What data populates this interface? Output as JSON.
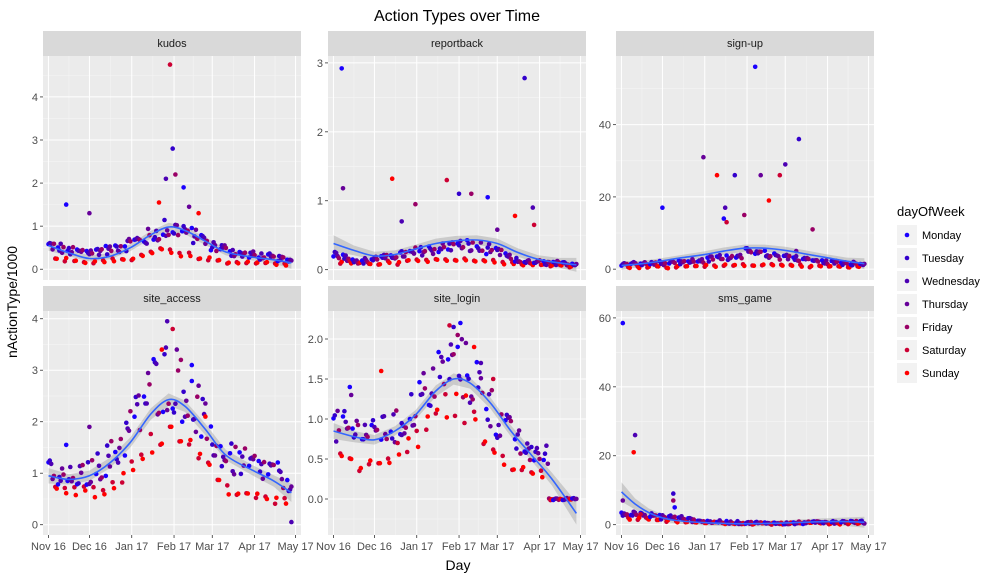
{
  "chart_data": {
    "type": "scatter",
    "title": "Action Types over Time",
    "xlabel": "Day",
    "ylabel": "nActionType/1000",
    "x_ticks": [
      "Nov 16",
      "Dec 16",
      "Jan 17",
      "Feb 17",
      "Mar 17",
      "Apr 17",
      "May 17"
    ],
    "x_tick_days": [
      0,
      30,
      61,
      92,
      120,
      151,
      181
    ],
    "xlim": [
      -4,
      185
    ],
    "legend": {
      "title": "dayOfWeek",
      "position": "right",
      "entries": [
        "Monday",
        "Tuesday",
        "Wednesday",
        "Thursday",
        "Friday",
        "Saturday",
        "Sunday"
      ],
      "colors": [
        "#1a00ff",
        "#3300cc",
        "#4c00b3",
        "#660099",
        "#990066",
        "#cc0033",
        "#ff0000"
      ]
    },
    "smooth_color": "#3366ff",
    "ribbon_color": "#999999",
    "grid": true,
    "panels": [
      {
        "name": "kudos",
        "ylim": [
          -0.25,
          4.95
        ],
        "y_ticks": [
          0,
          1,
          2,
          3,
          4
        ],
        "weekday_base": [
          [
            0,
            0.55
          ],
          [
            20,
            0.4
          ],
          [
            45,
            0.45
          ],
          [
            70,
            0.7
          ],
          [
            85,
            0.95
          ],
          [
            100,
            0.9
          ],
          [
            120,
            0.55
          ],
          [
            140,
            0.35
          ],
          [
            160,
            0.3
          ],
          [
            178,
            0.2
          ]
        ],
        "weekend_base": [
          [
            0,
            0.25
          ],
          [
            30,
            0.15
          ],
          [
            60,
            0.25
          ],
          [
            85,
            0.45
          ],
          [
            110,
            0.25
          ],
          [
            140,
            0.15
          ],
          [
            178,
            0.1
          ]
        ],
        "outliers": [
          [
            13,
            1.5
          ],
          [
            30,
            1.3
          ],
          [
            81,
            1.55
          ],
          [
            86,
            2.1
          ],
          [
            89,
            4.75
          ],
          [
            91,
            2.8
          ],
          [
            93,
            2.2
          ],
          [
            99,
            1.9
          ],
          [
            103,
            1.45
          ],
          [
            110,
            1.3
          ]
        ],
        "smooth": [
          [
            0,
            0.55
          ],
          [
            15,
            0.38
          ],
          [
            30,
            0.25
          ],
          [
            45,
            0.3
          ],
          [
            60,
            0.5
          ],
          [
            75,
            0.8
          ],
          [
            88,
            0.98
          ],
          [
            100,
            0.9
          ],
          [
            115,
            0.65
          ],
          [
            130,
            0.4
          ],
          [
            150,
            0.28
          ],
          [
            165,
            0.22
          ],
          [
            178,
            0.15
          ]
        ],
        "se": [
          0.12,
          0.08,
          0.07,
          0.07,
          0.08,
          0.09,
          0.1,
          0.09,
          0.09,
          0.08,
          0.08,
          0.09,
          0.14
        ]
      },
      {
        "name": "reportback",
        "ylim": [
          -0.15,
          3.1
        ],
        "y_ticks": [
          0,
          1,
          2,
          3
        ],
        "weekday_base": [
          [
            0,
            0.25
          ],
          [
            20,
            0.12
          ],
          [
            45,
            0.2
          ],
          [
            70,
            0.3
          ],
          [
            95,
            0.35
          ],
          [
            115,
            0.3
          ],
          [
            135,
            0.12
          ],
          [
            160,
            0.1
          ],
          [
            178,
            0.08
          ]
        ],
        "weekend_base": [
          [
            0,
            0.12
          ],
          [
            30,
            0.08
          ],
          [
            60,
            0.12
          ],
          [
            90,
            0.15
          ],
          [
            120,
            0.1
          ],
          [
            150,
            0.06
          ],
          [
            178,
            0.04
          ]
        ],
        "outliers": [
          [
            6,
            2.92
          ],
          [
            7,
            1.18
          ],
          [
            43,
            1.32
          ],
          [
            50,
            0.7
          ],
          [
            83,
            1.3
          ],
          [
            92,
            1.1
          ],
          [
            101,
            1.1
          ],
          [
            113,
            1.05
          ],
          [
            120,
            0.58
          ],
          [
            133,
            0.78
          ],
          [
            146,
            0.9
          ],
          [
            147,
            0.65
          ],
          [
            140,
            2.78
          ],
          [
            60,
            0.95
          ]
        ],
        "smooth": [
          [
            0,
            0.38
          ],
          [
            15,
            0.28
          ],
          [
            30,
            0.2
          ],
          [
            45,
            0.22
          ],
          [
            60,
            0.3
          ],
          [
            75,
            0.38
          ],
          [
            90,
            0.42
          ],
          [
            105,
            0.43
          ],
          [
            120,
            0.38
          ],
          [
            135,
            0.25
          ],
          [
            150,
            0.15
          ],
          [
            165,
            0.1
          ],
          [
            178,
            0.07
          ]
        ],
        "se": [
          0.12,
          0.07,
          0.06,
          0.06,
          0.06,
          0.07,
          0.07,
          0.07,
          0.07,
          0.06,
          0.06,
          0.07,
          0.1
        ]
      },
      {
        "name": "sign-up",
        "ylim": [
          -3,
          59
        ],
        "y_ticks": [
          0,
          20,
          40
        ],
        "weekday_base": [
          [
            0,
            1.5
          ],
          [
            30,
            1.8
          ],
          [
            60,
            2.5
          ],
          [
            90,
            4.5
          ],
          [
            120,
            3.5
          ],
          [
            150,
            2
          ],
          [
            178,
            1.5
          ]
        ],
        "weekend_base": [
          [
            0,
            0.5
          ],
          [
            60,
            0.8
          ],
          [
            100,
            1.2
          ],
          [
            140,
            0.8
          ],
          [
            178,
            0.5
          ]
        ],
        "outliers": [
          [
            30,
            17
          ],
          [
            60,
            31
          ],
          [
            70,
            26
          ],
          [
            76,
            17
          ],
          [
            77,
            13
          ],
          [
            83,
            26
          ],
          [
            90,
            15
          ],
          [
            98,
            56
          ],
          [
            102,
            26
          ],
          [
            108,
            19
          ],
          [
            120,
            29
          ],
          [
            116,
            26
          ],
          [
            130,
            36
          ],
          [
            140,
            11
          ],
          [
            75,
            14
          ],
          [
            128,
            5
          ]
        ],
        "smooth": [
          [
            0,
            1
          ],
          [
            15,
            1.5
          ],
          [
            30,
            2.3
          ],
          [
            45,
            3.2
          ],
          [
            60,
            4
          ],
          [
            75,
            5
          ],
          [
            90,
            5.8
          ],
          [
            105,
            5.8
          ],
          [
            120,
            5.2
          ],
          [
            135,
            4.2
          ],
          [
            150,
            3.2
          ],
          [
            165,
            2.2
          ],
          [
            178,
            1.5
          ]
        ],
        "se": [
          1.2,
          0.8,
          0.8,
          0.8,
          0.9,
          1,
          1,
          1,
          1,
          1,
          0.9,
          1,
          1.5
        ]
      },
      {
        "name": "site_access",
        "ylim": [
          -0.2,
          4.15
        ],
        "y_ticks": [
          0,
          1,
          2,
          3,
          4
        ],
        "weekday_base": [
          [
            0,
            1
          ],
          [
            15,
            0.9
          ],
          [
            30,
            1
          ],
          [
            50,
            1.4
          ],
          [
            65,
            2.1
          ],
          [
            80,
            2.8
          ],
          [
            90,
            2.9
          ],
          [
            100,
            2.6
          ],
          [
            115,
            1.9
          ],
          [
            130,
            1.3
          ],
          [
            150,
            1.15
          ],
          [
            165,
            1
          ],
          [
            178,
            0.85
          ]
        ],
        "weekend_base": [
          [
            0,
            0.65
          ],
          [
            20,
            0.6
          ],
          [
            45,
            0.7
          ],
          [
            70,
            1.4
          ],
          [
            85,
            1.9
          ],
          [
            100,
            1.6
          ],
          [
            120,
            0.9
          ],
          [
            140,
            0.55
          ],
          [
            160,
            0.5
          ],
          [
            178,
            0.4
          ]
        ],
        "outliers": [
          [
            13,
            1.55
          ],
          [
            30,
            1.9
          ],
          [
            83,
            3.4
          ],
          [
            87,
            3.95
          ],
          [
            91,
            3.8
          ],
          [
            93,
            4.25
          ],
          [
            97,
            3.2
          ],
          [
            105,
            3.1
          ],
          [
            110,
            2.7
          ],
          [
            115,
            2.1
          ],
          [
            178,
            0.05
          ]
        ],
        "smooth": [
          [
            0,
            0.95
          ],
          [
            15,
            0.88
          ],
          [
            30,
            0.95
          ],
          [
            45,
            1.2
          ],
          [
            60,
            1.6
          ],
          [
            75,
            2.15
          ],
          [
            88,
            2.43
          ],
          [
            100,
            2.3
          ],
          [
            115,
            1.85
          ],
          [
            130,
            1.35
          ],
          [
            150,
            1.05
          ],
          [
            165,
            0.85
          ],
          [
            178,
            0.62
          ]
        ],
        "se": [
          0.15,
          0.1,
          0.1,
          0.1,
          0.1,
          0.11,
          0.12,
          0.11,
          0.11,
          0.1,
          0.1,
          0.11,
          0.18
        ]
      },
      {
        "name": "site_login",
        "ylim": [
          -0.45,
          2.35
        ],
        "y_ticks": [
          0,
          0.5,
          1,
          1.5,
          2
        ],
        "y_tick_labels": [
          "0.0",
          "0.5",
          "1.0",
          "1.5",
          "2.0"
        ],
        "weekday_base": [
          [
            0,
            0.9
          ],
          [
            15,
            0.85
          ],
          [
            30,
            0.8
          ],
          [
            45,
            0.9
          ],
          [
            60,
            1.15
          ],
          [
            75,
            1.55
          ],
          [
            90,
            1.7
          ],
          [
            105,
            1.45
          ],
          [
            120,
            1
          ],
          [
            135,
            0.7
          ],
          [
            150,
            0.55
          ]
        ],
        "weekend_base": [
          [
            0,
            0.55
          ],
          [
            20,
            0.45
          ],
          [
            45,
            0.55
          ],
          [
            70,
            0.9
          ],
          [
            85,
            1.2
          ],
          [
            100,
            1.05
          ],
          [
            120,
            0.55
          ],
          [
            135,
            0.35
          ],
          [
            150,
            0.3
          ]
        ],
        "outliers": [
          [
            12,
            1.4
          ],
          [
            13,
            1.3
          ],
          [
            35,
            1.6
          ],
          [
            50,
            0.8
          ],
          [
            85,
            2.17
          ],
          [
            88,
            2.15
          ],
          [
            91,
            2.05
          ],
          [
            93,
            2.2
          ],
          [
            97,
            1.95
          ],
          [
            103,
            1.9
          ],
          [
            108,
            1.7
          ],
          [
            117,
            1.5
          ],
          [
            145,
            0.65
          ]
        ],
        "flat": {
          "start": 158,
          "end": 178,
          "value": 0
        },
        "smooth": [
          [
            0,
            0.85
          ],
          [
            15,
            0.78
          ],
          [
            30,
            0.74
          ],
          [
            45,
            0.85
          ],
          [
            60,
            1.05
          ],
          [
            75,
            1.35
          ],
          [
            88,
            1.5
          ],
          [
            100,
            1.45
          ],
          [
            115,
            1.2
          ],
          [
            130,
            0.85
          ],
          [
            145,
            0.55
          ],
          [
            160,
            0.25
          ],
          [
            178,
            -0.18
          ]
        ],
        "se": [
          0.1,
          0.07,
          0.06,
          0.06,
          0.06,
          0.07,
          0.07,
          0.07,
          0.07,
          0.07,
          0.07,
          0.08,
          0.14
        ]
      },
      {
        "name": "sms_game",
        "ylim": [
          -3,
          62
        ],
        "y_ticks": [
          0,
          20,
          40,
          60
        ],
        "weekday_base": [
          [
            0,
            3.5
          ],
          [
            20,
            2.5
          ],
          [
            40,
            2
          ],
          [
            60,
            1
          ],
          [
            90,
            0.5
          ],
          [
            120,
            0.4
          ],
          [
            150,
            0.8
          ],
          [
            178,
            0.7
          ]
        ],
        "weekend_base": [
          [
            0,
            2
          ],
          [
            20,
            1.5
          ],
          [
            40,
            1
          ],
          [
            60,
            0.5
          ],
          [
            100,
            0.3
          ],
          [
            150,
            0.4
          ],
          [
            178,
            0.3
          ]
        ],
        "outliers": [
          [
            1,
            58.5
          ],
          [
            1,
            7
          ],
          [
            9,
            21
          ],
          [
            10,
            26
          ],
          [
            14,
            3
          ],
          [
            38,
            9
          ],
          [
            38,
            7
          ],
          [
            39,
            5
          ],
          [
            145,
            0.8
          ]
        ],
        "smooth": [
          [
            0,
            9.5
          ],
          [
            10,
            6
          ],
          [
            20,
            3.5
          ],
          [
            30,
            2
          ],
          [
            40,
            1.2
          ],
          [
            60,
            0.6
          ],
          [
            80,
            0.3
          ],
          [
            100,
            0.3
          ],
          [
            120,
            0.5
          ],
          [
            140,
            0.8
          ],
          [
            160,
            0.9
          ],
          [
            178,
            0.7
          ]
        ],
        "se": [
          2.8,
          1.6,
          1.2,
          1,
          0.9,
          0.8,
          0.8,
          0.8,
          0.8,
          0.9,
          1.1,
          1.6
        ]
      }
    ]
  }
}
